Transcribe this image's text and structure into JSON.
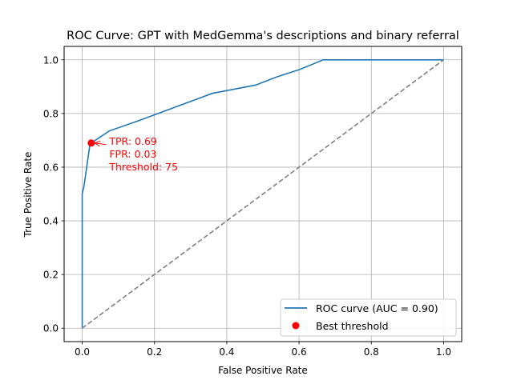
{
  "chart_data": {
    "type": "line",
    "title": "ROC Curve: GPT with MedGemma's descriptions and binary referral",
    "xlabel": "False Positive Rate",
    "ylabel": "True Positive Rate",
    "xlim": [
      -0.05,
      1.05
    ],
    "ylim": [
      -0.05,
      1.05
    ],
    "xticks": [
      0.0,
      0.2,
      0.4,
      0.6,
      0.8,
      1.0
    ],
    "yticks": [
      0.0,
      0.2,
      0.4,
      0.6,
      0.8,
      1.0
    ],
    "xtick_labels": [
      "0.0",
      "0.2",
      "0.4",
      "0.6",
      "0.8",
      "1.0"
    ],
    "ytick_labels": [
      "0.0",
      "0.2",
      "0.4",
      "0.6",
      "0.8",
      "1.0"
    ],
    "grid": true,
    "legend_position": "lower-right",
    "series": [
      {
        "name": "ROC curve (AUC = 0.90)",
        "type": "line",
        "color": "#1f77b4",
        "x": [
          0.0,
          0.0,
          0.005,
          0.022,
          0.025,
          0.075,
          0.16,
          0.25,
          0.33,
          0.36,
          0.48,
          0.54,
          0.6,
          0.667,
          1.0
        ],
        "y": [
          0.0,
          0.5,
          0.53,
          0.69,
          0.69,
          0.735,
          0.775,
          0.82,
          0.86,
          0.875,
          0.906,
          0.937,
          0.963,
          1.0,
          1.0
        ]
      },
      {
        "name": "Best threshold",
        "type": "scatter",
        "color": "#ff0000",
        "x": [
          0.025
        ],
        "y": [
          0.69
        ]
      },
      {
        "name": "",
        "type": "line",
        "style": "dashed",
        "color": "#808080",
        "x": [
          0.0,
          1.0
        ],
        "y": [
          0.0,
          1.0
        ]
      }
    ],
    "annotation": {
      "lines": [
        "TPR: 0.69",
        "FPR: 0.03",
        "Threshold: 75"
      ],
      "color": "#ff0000",
      "point": [
        0.025,
        0.69
      ],
      "text_at": [
        0.075,
        0.69
      ]
    }
  }
}
